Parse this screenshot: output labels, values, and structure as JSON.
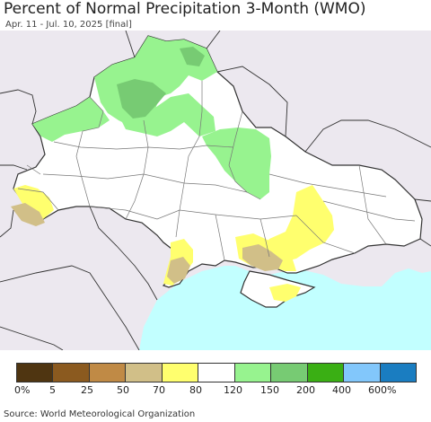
{
  "title": "Percent of Normal Precipitation 3-Month (WMO)",
  "subtitle": "Apr. 11 - Jul. 10, 2025 [final]",
  "legend": {
    "colors": [
      "#4f3511",
      "#8b5a1f",
      "#c08a45",
      "#d1bf88",
      "#ffff6e",
      "#ffffff",
      "#97f38f",
      "#77cb73",
      "#3aaf14",
      "#82c7fb",
      "#1a7dc1"
    ],
    "labels": [
      "0%",
      "5",
      "25",
      "50",
      "70",
      "80",
      "120",
      "150",
      "200",
      "400",
      "600%"
    ]
  },
  "source": "Source: World Meteorological Organization",
  "map_colors": {
    "land": "#ffffff",
    "outside": "#ece8ef",
    "sea": "#c2ffff",
    "green_light": "#97f38f",
    "green_mid": "#77cb73",
    "yellow": "#ffff6e",
    "tan": "#d1bf88",
    "border": "#333333",
    "oblast_border": "#777777"
  }
}
